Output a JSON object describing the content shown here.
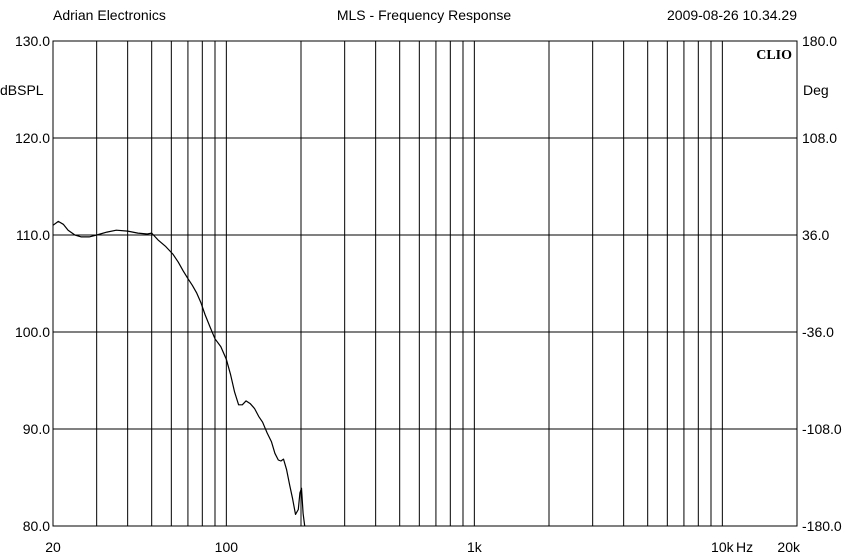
{
  "header": {
    "left": "Adrian Electronics",
    "center": "MLS - Frequency Response",
    "right": "2009-08-26 10.34.29"
  },
  "brand": "CLIO",
  "chart_data": {
    "type": "line",
    "title": "MLS - Frequency Response",
    "xlabel": "Hz",
    "ylabel": "dBSPL",
    "y2label": "Deg",
    "xscale": "log",
    "xlim": [
      20,
      20000
    ],
    "ylim": [
      80,
      130
    ],
    "y2lim": [
      -180,
      180
    ],
    "grid": true,
    "x_tick_labels": [
      {
        "value": 20,
        "label": "20"
      },
      {
        "value": 100,
        "label": "100"
      },
      {
        "value": 1000,
        "label": "1k"
      },
      {
        "value": 10000,
        "label": "10k"
      },
      {
        "value": 20000,
        "label": "20k"
      }
    ],
    "y_ticks": [
      {
        "value": 130,
        "label": "130.0"
      },
      {
        "value": 120,
        "label": "120.0"
      },
      {
        "value": 110,
        "label": "110.0"
      },
      {
        "value": 100,
        "label": "100.0"
      },
      {
        "value": 90,
        "label": "90.0"
      },
      {
        "value": 80,
        "label": "80.0"
      }
    ],
    "y2_ticks": [
      {
        "value": 180,
        "label": "180.0"
      },
      {
        "value": 108,
        "label": "108.0"
      },
      {
        "value": 36,
        "label": "36.0"
      },
      {
        "value": -36,
        "label": "-36.0"
      },
      {
        "value": -108,
        "label": "-108.0"
      },
      {
        "value": -180,
        "label": "-180.0"
      }
    ],
    "series": [
      {
        "color": "#000000",
        "x": [
          20,
          21,
          22,
          23,
          24.5,
          26,
          28,
          30,
          33,
          36,
          40,
          44,
          48,
          50,
          53,
          57,
          61,
          64,
          67,
          70,
          73,
          76,
          79,
          82,
          86,
          90,
          95,
          100,
          104,
          108,
          112,
          116,
          120,
          125,
          130,
          135,
          140,
          146,
          152,
          157,
          162,
          166,
          170,
          175,
          180,
          185,
          190,
          195,
          198,
          201,
          204,
          207
        ],
        "y": [
          111.0,
          111.4,
          111.1,
          110.5,
          110.0,
          109.8,
          109.8,
          110.0,
          110.3,
          110.5,
          110.4,
          110.2,
          110.1,
          110.2,
          109.5,
          108.8,
          108.0,
          107.2,
          106.3,
          105.5,
          104.8,
          104.0,
          103.0,
          101.8,
          100.5,
          99.3,
          98.5,
          97.2,
          95.6,
          93.8,
          92.5,
          92.5,
          92.9,
          92.6,
          92.1,
          91.3,
          90.7,
          89.6,
          88.7,
          87.5,
          86.8,
          86.7,
          86.9,
          85.8,
          84.2,
          82.8,
          81.2,
          81.7,
          83.4,
          83.9,
          81.3,
          80.0
        ]
      }
    ]
  }
}
